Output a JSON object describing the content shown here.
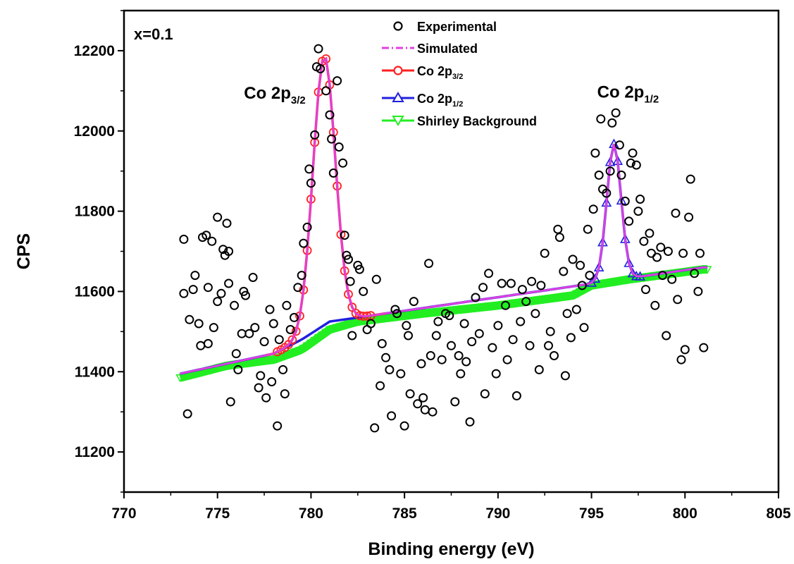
{
  "chart_data": {
    "type": "scatter",
    "title": "",
    "xlabel": "Binding energy (eV)",
    "ylabel": "CPS",
    "xlim": [
      770,
      805
    ],
    "ylim": [
      11100,
      12300
    ],
    "xticks": [
      770,
      775,
      780,
      785,
      790,
      795,
      800,
      805
    ],
    "yticks": [
      11200,
      11400,
      11600,
      11800,
      12000,
      12200
    ],
    "grid": false,
    "legend_position": "top-center",
    "annotations": {
      "sample": "x=0.1",
      "peak1": {
        "main": "Co 2p",
        "sub": "3/2",
        "x": 780.7,
        "y": 12070
      },
      "peak2": {
        "main": "Co 2p",
        "sub": "1/2",
        "x": 796.2,
        "y": 11960
      }
    },
    "legend": [
      {
        "key": "experimental",
        "label": "Experimental",
        "sub": "",
        "color": "#000000",
        "marker": "circle"
      },
      {
        "key": "simulated",
        "label": "Simulated",
        "sub": "",
        "color": "#e040e0",
        "marker": "dashdot"
      },
      {
        "key": "co2p32",
        "label": "Co 2p",
        "sub": "3/2",
        "color": "#ff2020",
        "marker": "circle"
      },
      {
        "key": "co2p12",
        "label": "Co 2p",
        "sub": "1/2",
        "color": "#2020e0",
        "marker": "triangle-up"
      },
      {
        "key": "shirley",
        "label": "Shirley Background",
        "sub": "",
        "color": "#22ee22",
        "marker": "triangle-down"
      }
    ],
    "x_range": {
      "start": 773,
      "end": 801.2,
      "step": 0.2
    },
    "background": {
      "points": [
        [
          773,
          11385
        ],
        [
          775.5,
          11415
        ],
        [
          778,
          11430
        ],
        [
          779.5,
          11455
        ],
        [
          781,
          11505
        ],
        [
          782.5,
          11525
        ],
        [
          786,
          11545
        ],
        [
          790,
          11565
        ],
        [
          794,
          11590
        ],
        [
          795,
          11615
        ],
        [
          797,
          11630
        ],
        [
          801,
          11655
        ]
      ]
    },
    "offset": {
      "points": [
        [
          773,
          11395
        ],
        [
          778,
          11445
        ],
        [
          779.5,
          11480
        ],
        [
          781,
          11525
        ],
        [
          782.5,
          11535
        ],
        [
          801,
          11660
        ]
      ]
    },
    "peaks": [
      {
        "name": "Co 2p3/2",
        "center": 780.7,
        "height": 11400,
        "fwhm": 1.4,
        "amplitude": 670
      },
      {
        "name": "Co 2p1/2",
        "center": 796.2,
        "height": 11620,
        "fwhm": 0.9,
        "amplitude": 340
      }
    ],
    "experimental": [
      [
        773.2,
        11730
      ],
      [
        773.2,
        11595
      ],
      [
        773.4,
        11295
      ],
      [
        773.5,
        11530
      ],
      [
        773.7,
        11605
      ],
      [
        773.8,
        11640
      ],
      [
        774,
        11520
      ],
      [
        774.1,
        11465
      ],
      [
        774.2,
        11735
      ],
      [
        774.4,
        11740
      ],
      [
        774.5,
        11610
      ],
      [
        774.5,
        11470
      ],
      [
        774.7,
        11725
      ],
      [
        774.8,
        11510
      ],
      [
        775,
        11785
      ],
      [
        775,
        11575
      ],
      [
        775.2,
        11595
      ],
      [
        775.3,
        11705
      ],
      [
        775.4,
        11690
      ],
      [
        775.5,
        11770
      ],
      [
        775.6,
        11700
      ],
      [
        775.6,
        11620
      ],
      [
        775.7,
        11325
      ],
      [
        775.9,
        11565
      ],
      [
        776,
        11445
      ],
      [
        776.1,
        11405
      ],
      [
        776.3,
        11495
      ],
      [
        776.4,
        11600
      ],
      [
        776.5,
        11590
      ],
      [
        776.7,
        11495
      ],
      [
        776.9,
        11635
      ],
      [
        777,
        11510
      ],
      [
        777.2,
        11360
      ],
      [
        777.3,
        11390
      ],
      [
        777.5,
        11475
      ],
      [
        777.6,
        11335
      ],
      [
        777.8,
        11555
      ],
      [
        777.9,
        11375
      ],
      [
        778,
        11520
      ],
      [
        778.2,
        11265
      ],
      [
        778.3,
        11480
      ],
      [
        778.5,
        11405
      ],
      [
        778.6,
        11345
      ],
      [
        778.7,
        11565
      ],
      [
        778.9,
        11505
      ],
      [
        779.1,
        11535
      ],
      [
        779.3,
        11610
      ],
      [
        779.5,
        11640
      ],
      [
        779.6,
        11720
      ],
      [
        779.8,
        11760
      ],
      [
        779.9,
        11905
      ],
      [
        780,
        11870
      ],
      [
        780.2,
        11990
      ],
      [
        780.3,
        12160
      ],
      [
        780.4,
        12205
      ],
      [
        780.5,
        12155
      ],
      [
        780.8,
        12100
      ],
      [
        781,
        12040
      ],
      [
        781.1,
        11980
      ],
      [
        781.2,
        11895
      ],
      [
        781.4,
        12125
      ],
      [
        781.5,
        11960
      ],
      [
        781.7,
        11920
      ],
      [
        781.8,
        11740
      ],
      [
        781.9,
        11690
      ],
      [
        782,
        11680
      ],
      [
        782.1,
        11625
      ],
      [
        782.2,
        11490
      ],
      [
        782.5,
        11665
      ],
      [
        782.6,
        11655
      ],
      [
        782.8,
        11600
      ],
      [
        783,
        11505
      ],
      [
        783.2,
        11520
      ],
      [
        783.4,
        11260
      ],
      [
        783.5,
        11630
      ],
      [
        783.7,
        11365
      ],
      [
        783.8,
        11470
      ],
      [
        784,
        11435
      ],
      [
        784.2,
        11405
      ],
      [
        784.3,
        11290
      ],
      [
        784.5,
        11555
      ],
      [
        784.6,
        11545
      ],
      [
        784.8,
        11395
      ],
      [
        785,
        11265
      ],
      [
        785.1,
        11515
      ],
      [
        785.2,
        11490
      ],
      [
        785.3,
        11345
      ],
      [
        785.5,
        11575
      ],
      [
        785.7,
        11320
      ],
      [
        785.9,
        11420
      ],
      [
        786,
        11335
      ],
      [
        786.1,
        11305
      ],
      [
        786.3,
        11670
      ],
      [
        786.4,
        11440
      ],
      [
        786.5,
        11300
      ],
      [
        786.7,
        11490
      ],
      [
        786.8,
        11525
      ],
      [
        787,
        11430
      ],
      [
        787.2,
        11545
      ],
      [
        787.4,
        11540
      ],
      [
        787.5,
        11465
      ],
      [
        787.7,
        11325
      ],
      [
        787.9,
        11440
      ],
      [
        788,
        11395
      ],
      [
        788.2,
        11520
      ],
      [
        788.3,
        11425
      ],
      [
        788.5,
        11275
      ],
      [
        788.6,
        11475
      ],
      [
        788.8,
        11585
      ],
      [
        789,
        11495
      ],
      [
        789.2,
        11610
      ],
      [
        789.3,
        11345
      ],
      [
        789.5,
        11645
      ],
      [
        789.7,
        11460
      ],
      [
        789.9,
        11395
      ],
      [
        790,
        11515
      ],
      [
        790.2,
        11620
      ],
      [
        790.4,
        11565
      ],
      [
        790.5,
        11430
      ],
      [
        790.7,
        11620
      ],
      [
        790.8,
        11480
      ],
      [
        791,
        11340
      ],
      [
        791.2,
        11525
      ],
      [
        791.3,
        11605
      ],
      [
        791.5,
        11575
      ],
      [
        791.7,
        11465
      ],
      [
        791.8,
        11625
      ],
      [
        792,
        11545
      ],
      [
        792.2,
        11405
      ],
      [
        792.3,
        11615
      ],
      [
        792.5,
        11695
      ],
      [
        792.7,
        11465
      ],
      [
        792.8,
        11500
      ],
      [
        793,
        11440
      ],
      [
        793.2,
        11755
      ],
      [
        793.3,
        11735
      ],
      [
        793.5,
        11650
      ],
      [
        793.6,
        11390
      ],
      [
        793.7,
        11545
      ],
      [
        793.9,
        11485
      ],
      [
        794,
        11680
      ],
      [
        794.2,
        11555
      ],
      [
        794.4,
        11665
      ],
      [
        794.5,
        11615
      ],
      [
        794.6,
        11510
      ],
      [
        794.8,
        11755
      ],
      [
        794.9,
        11640
      ],
      [
        795.1,
        11805
      ],
      [
        795.2,
        11945
      ],
      [
        795.4,
        11890
      ],
      [
        795.5,
        12030
      ],
      [
        795.6,
        11855
      ],
      [
        795.8,
        11845
      ],
      [
        796,
        11900
      ],
      [
        796.1,
        12020
      ],
      [
        796.3,
        12045
      ],
      [
        796.5,
        11965
      ],
      [
        796.6,
        11890
      ],
      [
        796.8,
        11825
      ],
      [
        797,
        11775
      ],
      [
        797.1,
        11920
      ],
      [
        797.2,
        11945
      ],
      [
        797.4,
        11915
      ],
      [
        797.5,
        11800
      ],
      [
        797.6,
        11830
      ],
      [
        797.8,
        11725
      ],
      [
        797.9,
        11605
      ],
      [
        798.1,
        11745
      ],
      [
        798.2,
        11695
      ],
      [
        798.4,
        11565
      ],
      [
        798.5,
        11685
      ],
      [
        798.7,
        11710
      ],
      [
        798.8,
        11640
      ],
      [
        799,
        11490
      ],
      [
        799.1,
        11700
      ],
      [
        799.3,
        11630
      ],
      [
        799.5,
        11795
      ],
      [
        799.6,
        11580
      ],
      [
        799.8,
        11430
      ],
      [
        799.9,
        11695
      ],
      [
        800,
        11455
      ],
      [
        800.2,
        11785
      ],
      [
        800.3,
        11880
      ],
      [
        800.5,
        11645
      ],
      [
        800.7,
        11600
      ],
      [
        800.8,
        11695
      ],
      [
        801,
        11460
      ]
    ]
  }
}
